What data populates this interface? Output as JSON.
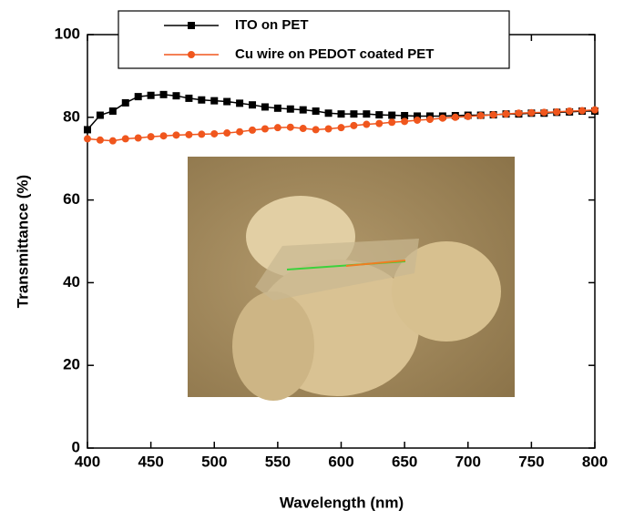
{
  "chart_data": {
    "type": "line",
    "x_label": "Wavelength (nm)",
    "y_label": "Transmittance (%)",
    "x": [
      400,
      410,
      420,
      430,
      440,
      450,
      460,
      470,
      480,
      490,
      500,
      510,
      520,
      530,
      540,
      550,
      560,
      570,
      580,
      590,
      600,
      610,
      620,
      630,
      640,
      650,
      660,
      670,
      680,
      690,
      700,
      710,
      720,
      730,
      740,
      750,
      760,
      770,
      780,
      790,
      800
    ],
    "series": [
      {
        "name": "ITO on PET",
        "color": "#000000",
        "marker": "square",
        "values": [
          77,
          80.5,
          81.5,
          83.5,
          85,
          85.3,
          85.5,
          85.2,
          84.6,
          84.2,
          84,
          83.8,
          83.4,
          83,
          82.5,
          82.2,
          82,
          81.8,
          81.5,
          81,
          80.8,
          80.8,
          80.8,
          80.6,
          80.5,
          80.4,
          80.3,
          80.3,
          80.3,
          80.4,
          80.5,
          80.5,
          80.6,
          80.8,
          80.8,
          81,
          81,
          81.2,
          81.3,
          81.5,
          81.5
        ]
      },
      {
        "name": "Cu wire on PEDOT coated PET",
        "color": "#f0561d",
        "marker": "circle",
        "values": [
          74.8,
          74.5,
          74.3,
          74.8,
          75,
          75.3,
          75.5,
          75.7,
          75.8,
          75.9,
          76,
          76.2,
          76.5,
          76.9,
          77.2,
          77.5,
          77.6,
          77.3,
          77,
          77.2,
          77.5,
          78,
          78.3,
          78.5,
          78.8,
          79,
          79.3,
          79.5,
          79.8,
          80,
          80.2,
          80.4,
          80.6,
          80.8,
          81,
          81.1,
          81.2,
          81.3,
          81.5,
          81.6,
          81.8
        ]
      }
    ],
    "xlim": [
      400,
      800
    ],
    "xticks": [
      400,
      450,
      500,
      550,
      600,
      650,
      700,
      750,
      800
    ],
    "ylim": [
      0,
      100
    ],
    "yticks": [
      0,
      20,
      40,
      60,
      80,
      100
    ],
    "legend": "top"
  }
}
